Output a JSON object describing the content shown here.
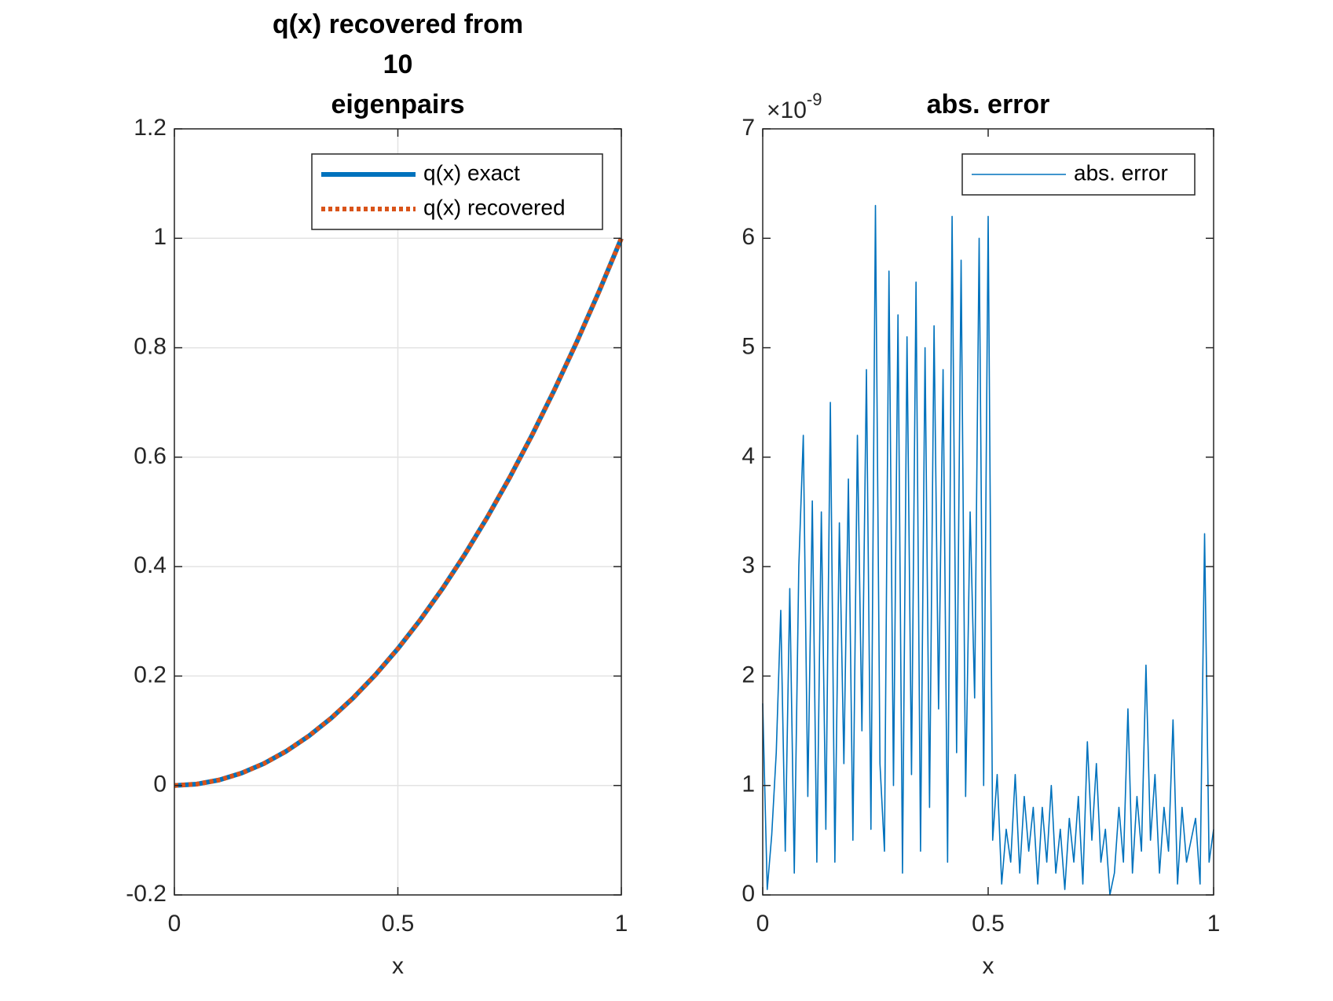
{
  "chart_data": [
    {
      "type": "line",
      "title": [
        "q(x) recovered from",
        "10",
        "eigenpairs"
      ],
      "xlabel": "x",
      "x": [
        0,
        0.05,
        0.1,
        0.15,
        0.2,
        0.25,
        0.3,
        0.35,
        0.4,
        0.45,
        0.5,
        0.55,
        0.6,
        0.65,
        0.7,
        0.75,
        0.8,
        0.85,
        0.9,
        0.95,
        1
      ],
      "series": [
        {
          "name": "q(x) exact",
          "color": "#0072bd",
          "style": "solid",
          "values": [
            0,
            0.0025,
            0.01,
            0.0225,
            0.04,
            0.0625,
            0.09,
            0.1225,
            0.16,
            0.2025,
            0.25,
            0.3025,
            0.36,
            0.4225,
            0.49,
            0.5625,
            0.64,
            0.7225,
            0.81,
            0.9025,
            1
          ]
        },
        {
          "name": "q(x) recovered",
          "color": "#d95319",
          "style": "dotted",
          "values": [
            0,
            0.0025,
            0.01,
            0.0225,
            0.04,
            0.0625,
            0.09,
            0.1225,
            0.16,
            0.2025,
            0.25,
            0.3025,
            0.36,
            0.4225,
            0.49,
            0.5625,
            0.64,
            0.7225,
            0.81,
            0.9025,
            1
          ]
        }
      ],
      "xlim": [
        0,
        1
      ],
      "xticks": [
        0,
        0.5,
        1
      ],
      "ylim": [
        -0.2,
        1.2
      ],
      "yticks": [
        -0.2,
        0,
        0.2,
        0.4,
        0.6,
        0.8,
        1,
        1.2
      ],
      "grid": true,
      "legend": "northeast"
    },
    {
      "type": "line",
      "title": [
        "abs. error"
      ],
      "xlabel": "x",
      "y_multiplier": {
        "base": "×10",
        "exponent": "-9"
      },
      "x": [
        0,
        0.01,
        0.02,
        0.03,
        0.04,
        0.05,
        0.06,
        0.07,
        0.08,
        0.09,
        0.1,
        0.11,
        0.12,
        0.13,
        0.14,
        0.15,
        0.16,
        0.17,
        0.18,
        0.19,
        0.2,
        0.21,
        0.22,
        0.23,
        0.24,
        0.25,
        0.26,
        0.27,
        0.28,
        0.29,
        0.3,
        0.31,
        0.32,
        0.33,
        0.34,
        0.35,
        0.36,
        0.37,
        0.38,
        0.39,
        0.4,
        0.41,
        0.42,
        0.43,
        0.44,
        0.45,
        0.46,
        0.47,
        0.48,
        0.49,
        0.5,
        0.51,
        0.52,
        0.53,
        0.54,
        0.55,
        0.56,
        0.57,
        0.58,
        0.59,
        0.6,
        0.61,
        0.62,
        0.63,
        0.64,
        0.65,
        0.66,
        0.67,
        0.68,
        0.69,
        0.7,
        0.71,
        0.72,
        0.73,
        0.74,
        0.75,
        0.76,
        0.77,
        0.78,
        0.79,
        0.8,
        0.81,
        0.82,
        0.83,
        0.84,
        0.85,
        0.86,
        0.87,
        0.88,
        0.89,
        0.9,
        0.91,
        0.92,
        0.93,
        0.94,
        0.95,
        0.96,
        0.97,
        0.98,
        0.99,
        1
      ],
      "series": [
        {
          "name": "abs. error",
          "color": "#0072bd",
          "style": "thin",
          "values": [
            1.75,
            0.05,
            0.55,
            1.3,
            2.6,
            0.4,
            2.8,
            0.2,
            3.0,
            4.2,
            0.9,
            3.6,
            0.3,
            3.5,
            0.6,
            4.5,
            0.3,
            3.4,
            1.2,
            3.8,
            0.5,
            4.2,
            1.5,
            4.8,
            0.6,
            6.3,
            1.2,
            0.4,
            5.7,
            1.0,
            5.3,
            0.2,
            5.1,
            1.1,
            5.6,
            0.4,
            5.0,
            0.8,
            5.2,
            1.7,
            4.8,
            0.3,
            6.2,
            1.3,
            5.8,
            0.9,
            3.5,
            1.8,
            6.0,
            1.0,
            6.2,
            0.5,
            1.1,
            0.1,
            0.6,
            0.3,
            1.1,
            0.2,
            0.9,
            0.4,
            0.8,
            0.1,
            0.8,
            0.3,
            1.0,
            0.2,
            0.6,
            0.05,
            0.7,
            0.3,
            0.9,
            0.1,
            1.4,
            0.5,
            1.2,
            0.3,
            0.6,
            0,
            0.2,
            0.8,
            0.3,
            1.7,
            0.2,
            0.9,
            0.4,
            2.1,
            0.5,
            1.1,
            0.2,
            0.8,
            0.4,
            1.6,
            0.1,
            0.8,
            0.3,
            0.5,
            0.7,
            0.1,
            3.3,
            0.3,
            0.6
          ]
        }
      ],
      "xlim": [
        0,
        1
      ],
      "xticks": [
        0,
        0.5,
        1
      ],
      "ylim": [
        0,
        7
      ],
      "yticks": [
        0,
        1,
        2,
        3,
        4,
        5,
        6,
        7
      ],
      "grid": false,
      "legend": "northeast"
    }
  ]
}
